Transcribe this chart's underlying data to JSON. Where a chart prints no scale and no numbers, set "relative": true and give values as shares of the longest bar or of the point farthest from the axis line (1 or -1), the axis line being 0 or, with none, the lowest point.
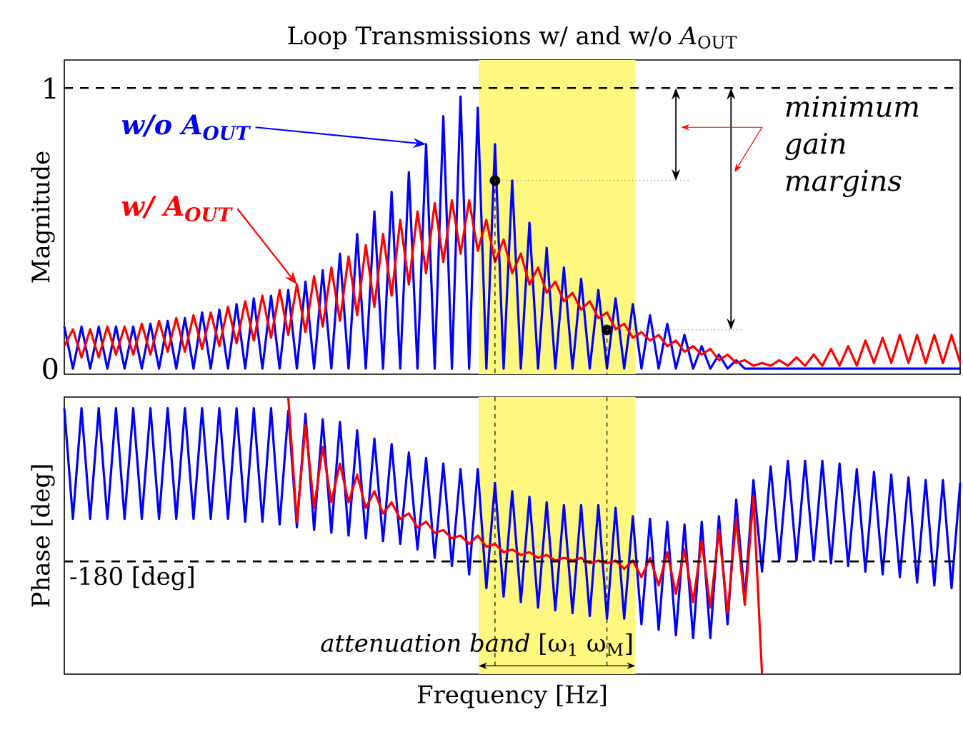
{
  "chart_data": [
    {
      "type": "line",
      "title": "Loop Transmissions w/ and w/o *A*$_{OUT}$",
      "ylabel": "Magnitude",
      "categories": [
        null,
        null,
        null,
        null,
        null,
        null,
        null,
        null,
        null,
        null,
        null,
        null,
        null,
        null,
        null,
        null,
        null,
        null,
        null,
        null,
        null,
        null,
        null,
        null,
        null,
        null,
        null,
        null,
        null,
        null,
        null,
        null,
        null,
        null,
        null,
        null,
        null,
        null,
        null,
        null,
        null,
        null,
        null,
        null,
        null,
        null,
        null,
        null,
        null,
        null,
        null,
        null,
        null,
        null,
        null,
        null,
        null,
        null,
        null,
        null,
        null,
        null,
        null,
        null,
        null,
        null,
        null,
        null,
        null,
        null,
        null,
        null,
        null,
        null,
        null,
        null,
        null,
        null,
        null,
        null,
        null,
        null,
        null,
        null,
        null,
        null,
        null,
        null,
        null,
        null,
        null,
        null,
        null,
        null,
        null,
        null,
        null,
        null,
        null,
        null,
        null,
        null,
        null,
        null,
        null
      ],
      "ylim": [
        -0.02,
        1.1
      ],
      "yticks": [
        0,
        1
      ],
      "tick_labels": "y",
      "series": [
        {
          "name": "w/o *A*$_{OUT}$",
          "color": "#0000ff",
          "values": [
            0.15,
            0,
            0.15,
            0,
            0.15,
            0,
            0.15,
            0,
            0.15,
            0,
            0.16,
            0,
            0.17,
            0,
            0.18,
            0,
            0.2,
            0,
            0.21,
            0,
            0.23,
            0,
            0.25,
            0,
            0.26,
            0,
            0.28,
            0,
            0.31,
            0,
            0.35,
            0,
            0.41,
            0,
            0.48,
            0,
            0.56,
            0,
            0.63,
            0,
            0.7,
            0,
            0.8,
            0,
            0.9,
            0,
            0.97,
            0,
            0.93,
            0,
            0.8,
            0,
            0.67,
            0,
            0.52,
            0,
            0.43,
            0,
            0.36,
            0,
            0.32,
            0,
            0.28,
            0,
            0.25,
            0,
            0.23,
            0,
            0.19,
            0,
            0.16,
            0,
            0.12,
            0,
            0.08,
            0,
            0.05,
            0,
            0.03,
            0,
            0,
            0,
            0,
            0,
            0,
            0,
            0,
            0,
            0,
            0,
            0,
            0,
            0,
            0,
            0,
            0,
            0,
            0,
            0,
            0,
            0,
            0,
            0,
            0,
            0
          ]
        },
        {
          "name": "w/ *A*$_{OUT}$",
          "color": "#ff0000",
          "values": [
            0.08,
            0.14,
            0.04,
            0.14,
            0.04,
            0.15,
            0.05,
            0.15,
            0.05,
            0.16,
            0.05,
            0.17,
            0.06,
            0.18,
            0.06,
            0.19,
            0.07,
            0.2,
            0.08,
            0.22,
            0.09,
            0.24,
            0.1,
            0.26,
            0.11,
            0.28,
            0.12,
            0.3,
            0.13,
            0.33,
            0.15,
            0.36,
            0.17,
            0.4,
            0.19,
            0.44,
            0.22,
            0.48,
            0.26,
            0.53,
            0.3,
            0.56,
            0.34,
            0.59,
            0.38,
            0.6,
            0.41,
            0.6,
            0.42,
            0.53,
            0.38,
            0.46,
            0.34,
            0.41,
            0.3,
            0.36,
            0.27,
            0.31,
            0.24,
            0.27,
            0.21,
            0.24,
            0.18,
            0.2,
            0.14,
            0.16,
            0.11,
            0.13,
            0.1,
            0.12,
            0.08,
            0.1,
            0.06,
            0.08,
            0.05,
            0.07,
            0.03,
            0.05,
            0.02,
            0.03,
            0.01,
            0.02,
            0.01,
            0.03,
            0.01,
            0.04,
            0.01,
            0.05,
            0.01,
            0.07,
            0.01,
            0.08,
            0.01,
            0.1,
            0.02,
            0.11,
            0.02,
            0.12,
            0.02,
            0.12,
            0.02,
            0.12,
            0.02,
            0.12,
            0.02
          ]
        },
        {
          "type": "scatter",
          "color": "#000000",
          "values": [
            null,
            null,
            null,
            null,
            null,
            null,
            null,
            null,
            null,
            null,
            null,
            null,
            null,
            null,
            null,
            null,
            null,
            null,
            null,
            null,
            null,
            null,
            null,
            null,
            null,
            null,
            null,
            null,
            null,
            null,
            null,
            null,
            null,
            null,
            null,
            null,
            null,
            null,
            null,
            null,
            null,
            null,
            null,
            null,
            null,
            null,
            null,
            null,
            null,
            null,
            0.67,
            null,
            null,
            null,
            null,
            null,
            null,
            null,
            null,
            null,
            null,
            null,
            null,
            0.138,
            null,
            null,
            null,
            null,
            null,
            null,
            null,
            null,
            null,
            null,
            null,
            null,
            null,
            null,
            null,
            null,
            null,
            null,
            null,
            null,
            null,
            null,
            null,
            null,
            null,
            null,
            null,
            null,
            null,
            null,
            null,
            null,
            null,
            null,
            null,
            null,
            null,
            null,
            null,
            null,
            null
          ]
        }
      ],
      "ref_lines": [
        {
          "axis": "y",
          "value": 1,
          "line_style": "dashed",
          "color": "#000000"
        }
      ],
      "annotations": [
        "*minimum gain margins*"
      ]
    },
    {
      "type": "line",
      "xlabel": "Frequency  [Hz]",
      "ylabel": "Phase [deg]",
      "relative": true,
      "tick_labels": false,
      "categories": [
        null,
        null,
        null,
        null,
        null,
        null,
        null,
        null,
        null,
        null,
        null,
        null,
        null,
        null,
        null,
        null,
        null,
        null,
        null,
        null,
        null,
        null,
        null,
        null,
        null,
        null,
        null,
        null,
        null,
        null,
        null,
        null,
        null,
        null,
        null,
        null,
        null,
        null,
        null,
        null,
        null,
        null,
        null,
        null,
        null,
        null,
        null,
        null,
        null,
        null,
        null,
        null,
        null,
        null,
        null,
        null,
        null,
        null,
        null,
        null,
        null,
        null,
        null,
        null,
        null,
        null,
        null,
        null,
        null,
        null,
        null,
        null,
        null,
        null,
        null,
        null,
        null,
        null,
        null,
        null,
        null,
        null,
        null,
        null,
        null,
        null,
        null,
        null,
        null,
        null,
        null,
        null,
        null,
        null,
        null,
        null,
        null,
        null,
        null,
        null,
        null,
        null,
        null,
        null,
        null
      ],
      "series": [
        {
          "color": "#0000ff",
          "values": [
            0.96,
            0.56,
            0.96,
            0.56,
            0.96,
            0.56,
            0.96,
            0.56,
            0.96,
            0.56,
            0.96,
            0.56,
            0.96,
            0.56,
            0.96,
            0.56,
            0.96,
            0.56,
            0.96,
            0.56,
            0.96,
            0.55,
            0.96,
            0.55,
            0.96,
            0.54,
            0.95,
            0.53,
            0.94,
            0.52,
            0.92,
            0.51,
            0.91,
            0.5,
            0.88,
            0.49,
            0.85,
            0.48,
            0.83,
            0.47,
            0.8,
            0.45,
            0.78,
            0.42,
            0.76,
            0.39,
            0.74,
            0.36,
            0.74,
            0.31,
            0.69,
            0.28,
            0.66,
            0.26,
            0.64,
            0.24,
            0.62,
            0.23,
            0.61,
            0.22,
            0.61,
            0.21,
            0.61,
            0.2,
            0.6,
            0.2,
            0.57,
            0.18,
            0.56,
            0.16,
            0.55,
            0.14,
            0.54,
            0.13,
            0.55,
            0.13,
            0.57,
            0.18,
            0.63,
            0.27,
            0.7,
            0.37,
            0.75,
            0.41,
            0.77,
            0.41,
            0.77,
            0.41,
            0.77,
            0.4,
            0.76,
            0.39,
            0.74,
            0.37,
            0.73,
            0.36,
            0.72,
            0.35,
            0.71,
            0.33,
            0.7,
            0.32,
            0.7,
            0.31,
            0.69
          ]
        },
        {
          "color": "#ff0000",
          "values": [
            null,
            null,
            null,
            null,
            null,
            null,
            null,
            null,
            null,
            null,
            null,
            null,
            null,
            null,
            null,
            null,
            null,
            null,
            null,
            null,
            null,
            null,
            null,
            null,
            null,
            null,
            1,
            0.55,
            0.9,
            0.6,
            0.82,
            0.62,
            0.76,
            0.62,
            0.72,
            0.6,
            0.66,
            0.58,
            0.62,
            0.56,
            0.58,
            0.53,
            0.55,
            0.51,
            0.52,
            0.49,
            0.5,
            0.47,
            0.5,
            0.46,
            0.47,
            0.44,
            0.45,
            0.43,
            0.44,
            0.42,
            0.43,
            0.41,
            0.42,
            0.41,
            0.42,
            0.4,
            0.41,
            0.4,
            0.41,
            0.38,
            0.41,
            0.35,
            0.42,
            0.32,
            0.44,
            0.29,
            0.45,
            0.26,
            0.48,
            0.24,
            0.52,
            0.22,
            0.56,
            0.25,
            0.64,
            0,
            null,
            null,
            null,
            null,
            null,
            null,
            null,
            null,
            null,
            null,
            null,
            null,
            null,
            null,
            null,
            null,
            null,
            null,
            null,
            null,
            null,
            null,
            null
          ]
        }
      ],
      "ref_lines": [
        {
          "axis": "y",
          "value": 0.407,
          "label": "-180 [deg]",
          "line_style": "dashed",
          "color": "#000000"
        }
      ],
      "annotations": [
        "*attenuation band* [ω$_{1}$ ω$_{M}$]"
      ]
    }
  ]
}
